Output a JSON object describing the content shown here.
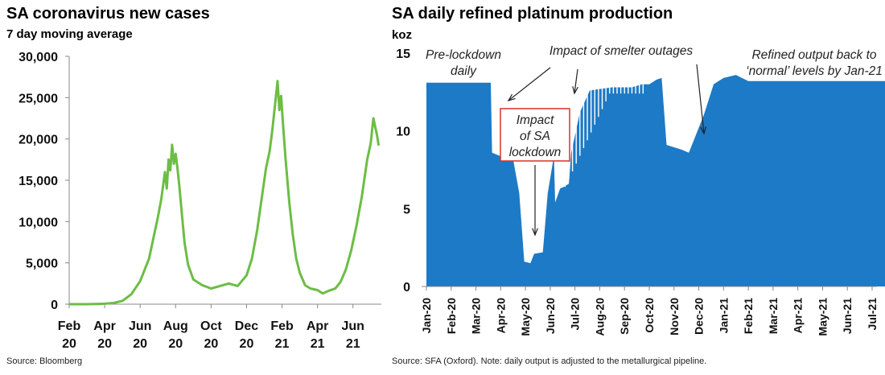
{
  "chart_data": [
    {
      "type": "line",
      "title": "SA coronavirus new cases",
      "subtitle": "7 day moving average",
      "source": "Source: Bloomberg",
      "color": "#6cbd45",
      "ylim": [
        0,
        30000
      ],
      "yticks": [
        0,
        5000,
        10000,
        15000,
        20000,
        25000,
        30000
      ],
      "ytick_labels": [
        "0",
        "5,000",
        "10,000",
        "15,000",
        "20,000",
        "25,000",
        "30,000"
      ],
      "xlim_month_index": [
        0,
        17.6
      ],
      "xticks": [
        {
          "i": 0,
          "m": "Feb",
          "y": "20"
        },
        {
          "i": 2,
          "m": "Apr",
          "y": "20"
        },
        {
          "i": 4,
          "m": "Jun",
          "y": "20"
        },
        {
          "i": 6,
          "m": "Aug",
          "y": "20"
        },
        {
          "i": 8,
          "m": "Oct",
          "y": "20"
        },
        {
          "i": 10,
          "m": "Dec",
          "y": "20"
        },
        {
          "i": 12,
          "m": "Feb",
          "y": "21"
        },
        {
          "i": 14,
          "m": "Apr",
          "y": "21"
        },
        {
          "i": 16,
          "m": "Jun",
          "y": "21"
        }
      ],
      "series": [
        {
          "name": "SA new cases (7 day moving average)",
          "points": [
            [
              0,
              0
            ],
            [
              1,
              0
            ],
            [
              1.5,
              30
            ],
            [
              2,
              60
            ],
            [
              2.5,
              150
            ],
            [
              3,
              400
            ],
            [
              3.5,
              1200
            ],
            [
              4,
              2800
            ],
            [
              4.5,
              5500
            ],
            [
              4.8,
              8500
            ],
            [
              5.0,
              10500
            ],
            [
              5.2,
              12800
            ],
            [
              5.4,
              16000
            ],
            [
              5.5,
              14000
            ],
            [
              5.6,
              17500
            ],
            [
              5.7,
              16200
            ],
            [
              5.8,
              19300
            ],
            [
              5.9,
              17000
            ],
            [
              6.0,
              18200
            ],
            [
              6.1,
              16500
            ],
            [
              6.2,
              14500
            ],
            [
              6.35,
              11000
            ],
            [
              6.5,
              7500
            ],
            [
              6.7,
              4800
            ],
            [
              7.0,
              3000
            ],
            [
              7.5,
              2300
            ],
            [
              8.0,
              1900
            ],
            [
              8.5,
              2200
            ],
            [
              9.0,
              2500
            ],
            [
              9.5,
              2200
            ],
            [
              10.0,
              3500
            ],
            [
              10.3,
              5500
            ],
            [
              10.6,
              9000
            ],
            [
              10.9,
              13500
            ],
            [
              11.1,
              16500
            ],
            [
              11.3,
              18500
            ],
            [
              11.45,
              21000
            ],
            [
              11.6,
              24000
            ],
            [
              11.75,
              27000
            ],
            [
              11.85,
              23500
            ],
            [
              11.95,
              25200
            ],
            [
              12.05,
              22000
            ],
            [
              12.2,
              17500
            ],
            [
              12.4,
              12500
            ],
            [
              12.6,
              8500
            ],
            [
              12.8,
              5500
            ],
            [
              13.0,
              3800
            ],
            [
              13.3,
              2300
            ],
            [
              13.6,
              1900
            ],
            [
              14.0,
              1700
            ],
            [
              14.3,
              1300
            ],
            [
              14.6,
              1600
            ],
            [
              15.0,
              1900
            ],
            [
              15.3,
              2700
            ],
            [
              15.6,
              4200
            ],
            [
              15.9,
              6500
            ],
            [
              16.2,
              9500
            ],
            [
              16.5,
              13000
            ],
            [
              16.8,
              17500
            ],
            [
              17.0,
              19500
            ],
            [
              17.15,
              22500
            ],
            [
              17.25,
              21500
            ],
            [
              17.35,
              20500
            ],
            [
              17.45,
              19200
            ]
          ]
        }
      ]
    },
    {
      "type": "area",
      "title": "SA daily refined platinum production",
      "ylabel": "koz",
      "source": "Source: SFA (Oxford). Note: daily output is adjusted to the metallurgical pipeline.",
      "color": "#1d7ac6",
      "ylim": [
        0,
        15
      ],
      "yticks": [
        0,
        5,
        10,
        15
      ],
      "ytick_labels": [
        "0",
        "5",
        "10",
        "15"
      ],
      "xticks": [
        "Jan-20",
        "Feb-20",
        "Mar-20",
        "Apr-20",
        "May-20",
        "Jun-20",
        "Jul-20",
        "Aug-20",
        "Sep-20",
        "Oct-20",
        "Nov-20",
        "Dec-20",
        "Jan-21",
        "Feb-21",
        "Mar-21",
        "Apr-21",
        "May-21",
        "Jun-21",
        "Jul-21"
      ],
      "series": [
        {
          "name": "Daily refined platinum output (koz)",
          "points": [
            [
              0,
              13.1
            ],
            [
              2.6,
              13.1
            ],
            [
              2.65,
              8.6
            ],
            [
              3.1,
              8.3
            ],
            [
              3.5,
              8.2
            ],
            [
              3.75,
              6.0
            ],
            [
              3.95,
              1.6
            ],
            [
              4.2,
              1.5
            ],
            [
              4.35,
              2.1
            ],
            [
              4.7,
              2.2
            ],
            [
              4.9,
              6.0
            ],
            [
              5.15,
              8.4
            ],
            [
              5.2,
              5.4
            ],
            [
              5.4,
              6.3
            ],
            [
              5.55,
              6.4
            ],
            [
              5.75,
              6.6
            ],
            [
              5.85,
              8.6
            ],
            [
              6.2,
              11.2
            ],
            [
              6.6,
              12.6
            ],
            [
              7.5,
              12.8
            ],
            [
              8.3,
              12.8
            ],
            [
              8.7,
              13.0
            ],
            [
              9.0,
              13.0
            ],
            [
              9.3,
              13.3
            ],
            [
              9.5,
              13.4
            ],
            [
              9.7,
              9.1
            ],
            [
              10.3,
              8.8
            ],
            [
              10.6,
              8.6
            ],
            [
              11.2,
              11.0
            ],
            [
              11.6,
              13.0
            ],
            [
              12.0,
              13.4
            ],
            [
              12.5,
              13.6
            ],
            [
              13.0,
              13.2
            ],
            [
              18.9,
              13.2
            ]
          ]
        }
      ],
      "annotations": [
        {
          "lines": [
            "Pre-lockdown",
            "daily"
          ],
          "italic": true
        },
        {
          "lines": [
            "Impact",
            "of SA",
            "lockdown"
          ],
          "italic": true,
          "boxed": true
        },
        {
          "lines": [
            "Impact of smelter outages"
          ],
          "italic": true
        },
        {
          "lines": [
            "Refined output back to",
            "‘normal’ levels by Jan-21"
          ],
          "italic": true
        }
      ]
    }
  ]
}
